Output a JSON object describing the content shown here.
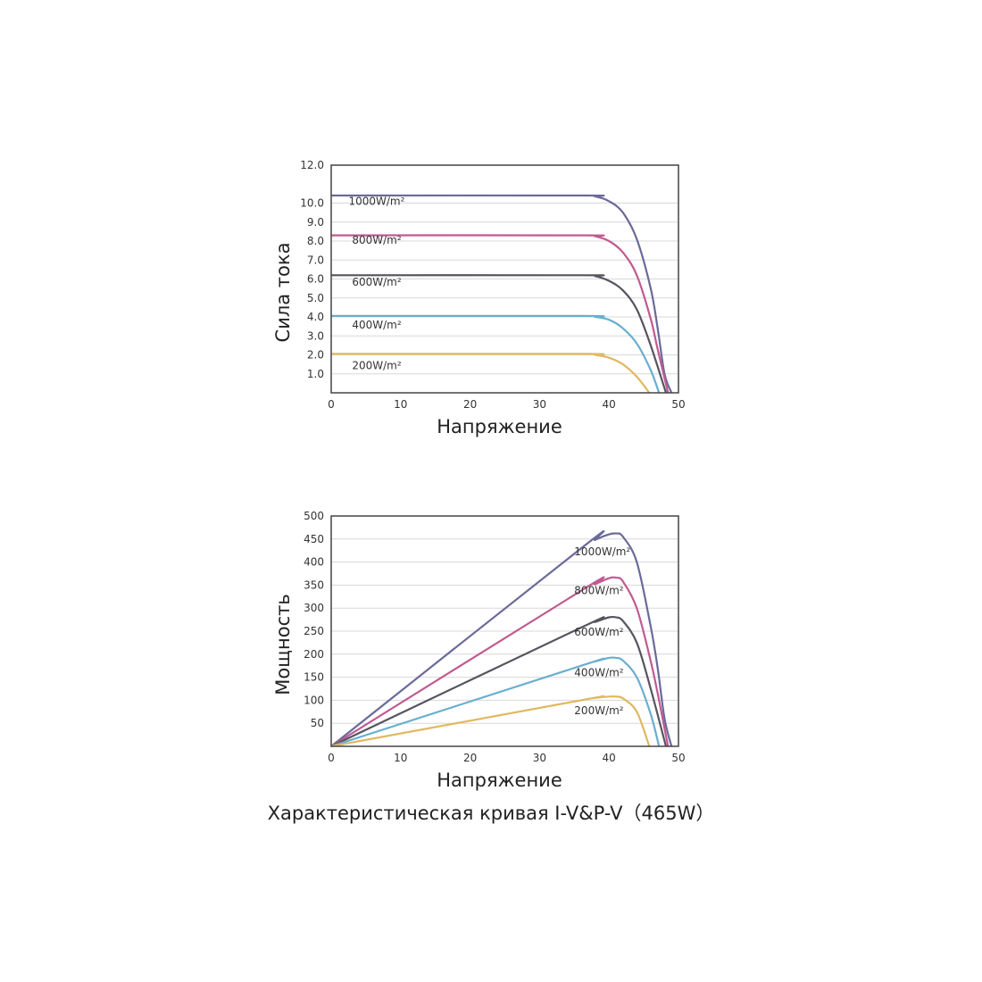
{
  "caption": "Характеристическая кривая  I-V&P-V（465W）",
  "chart_data": [
    {
      "type": "line",
      "title": "",
      "xlabel": "Напряжение",
      "ylabel": "Сила тока",
      "xlim": [
        0,
        50
      ],
      "ylim": [
        0,
        12
      ],
      "x_ticks": [
        "0",
        "10",
        "20",
        "30",
        "40",
        "50"
      ],
      "y_ticks": [
        "1.0",
        "2.0",
        "3.0",
        "4.0",
        "5.0",
        "6.0",
        "7.0",
        "8.0",
        "9.0",
        "10.0",
        "12.0"
      ],
      "grid": true,
      "series": [
        {
          "name": "1000W/m²",
          "color": "#6a6a9a",
          "label_x": 2.5,
          "label_y": 9.9,
          "x": [
            0,
            36,
            38,
            40,
            42,
            44,
            46,
            47,
            48,
            49
          ],
          "values": [
            10.4,
            10.4,
            10.35,
            10.1,
            9.5,
            8.1,
            5.5,
            3.4,
            1.0,
            0
          ]
        },
        {
          "name": "800W/m²",
          "color": "#c05a90",
          "label_x": 3,
          "label_y": 7.85,
          "x": [
            0,
            36,
            38,
            40,
            42,
            44,
            46,
            47,
            48.5
          ],
          "values": [
            8.3,
            8.3,
            8.25,
            8.0,
            7.4,
            6.2,
            3.9,
            2.3,
            0
          ]
        },
        {
          "name": "600W/m²",
          "color": "#555560",
          "label_x": 3,
          "label_y": 5.65,
          "x": [
            0,
            36,
            38,
            40,
            42,
            44,
            46,
            48.2
          ],
          "values": [
            6.2,
            6.2,
            6.15,
            5.9,
            5.4,
            4.4,
            2.5,
            0
          ]
        },
        {
          "name": "400W/m²",
          "color": "#6aaed0",
          "label_x": 3,
          "label_y": 3.4,
          "x": [
            0,
            36,
            38,
            40,
            42,
            44,
            46,
            47.2
          ],
          "values": [
            4.05,
            4.05,
            4.0,
            3.85,
            3.4,
            2.6,
            1.2,
            0
          ]
        },
        {
          "name": "200W/m²",
          "color": "#e0b860",
          "label_x": 3,
          "label_y": 1.25,
          "x": [
            0,
            36,
            38,
            40,
            42,
            44,
            45.8
          ],
          "values": [
            2.05,
            2.05,
            2.0,
            1.85,
            1.5,
            0.85,
            0
          ]
        }
      ]
    },
    {
      "type": "line",
      "title": "",
      "xlabel": "Напряжение",
      "ylabel": "Мощность",
      "xlim": [
        0,
        50
      ],
      "ylim": [
        0,
        500
      ],
      "x_ticks": [
        "0",
        "10",
        "20",
        "30",
        "40",
        "50"
      ],
      "y_ticks": [
        "50",
        "100",
        "150",
        "200",
        "250",
        "300",
        "350",
        "400",
        "450",
        "500"
      ],
      "grid": true,
      "series": [
        {
          "name": "1000W/m²",
          "color": "#6a6a9a",
          "label_x": 35,
          "label_y": 415,
          "x": [
            0,
            36,
            38,
            40,
            41,
            42,
            44,
            46,
            47,
            48,
            49
          ],
          "values": [
            0,
            430,
            448,
            460,
            462,
            455,
            400,
            260,
            170,
            60,
            0
          ]
        },
        {
          "name": "800W/m²",
          "color": "#c05a90",
          "label_x": 35,
          "label_y": 330,
          "x": [
            0,
            36,
            38,
            40,
            41,
            42,
            44,
            46,
            47,
            48.5
          ],
          "values": [
            0,
            338,
            352,
            365,
            366,
            358,
            300,
            185,
            115,
            0
          ]
        },
        {
          "name": "600W/m²",
          "color": "#555560",
          "label_x": 35,
          "label_y": 240,
          "x": [
            0,
            36,
            38,
            40,
            41,
            42,
            44,
            46,
            48.2
          ],
          "values": [
            0,
            258,
            270,
            280,
            280,
            272,
            225,
            125,
            0
          ]
        },
        {
          "name": "400W/m²",
          "color": "#6aaed0",
          "label_x": 35,
          "label_y": 152,
          "x": [
            0,
            36,
            38,
            40,
            41,
            42,
            44,
            46,
            47.2
          ],
          "values": [
            0,
            175,
            184,
            192,
            192,
            186,
            150,
            70,
            0
          ]
        },
        {
          "name": "200W/m²",
          "color": "#e0b860",
          "label_x": 35,
          "label_y": 70,
          "x": [
            0,
            36,
            38,
            40,
            41,
            42,
            44,
            45.8
          ],
          "values": [
            0,
            100,
            105,
            108,
            108,
            104,
            75,
            0
          ]
        }
      ]
    }
  ]
}
